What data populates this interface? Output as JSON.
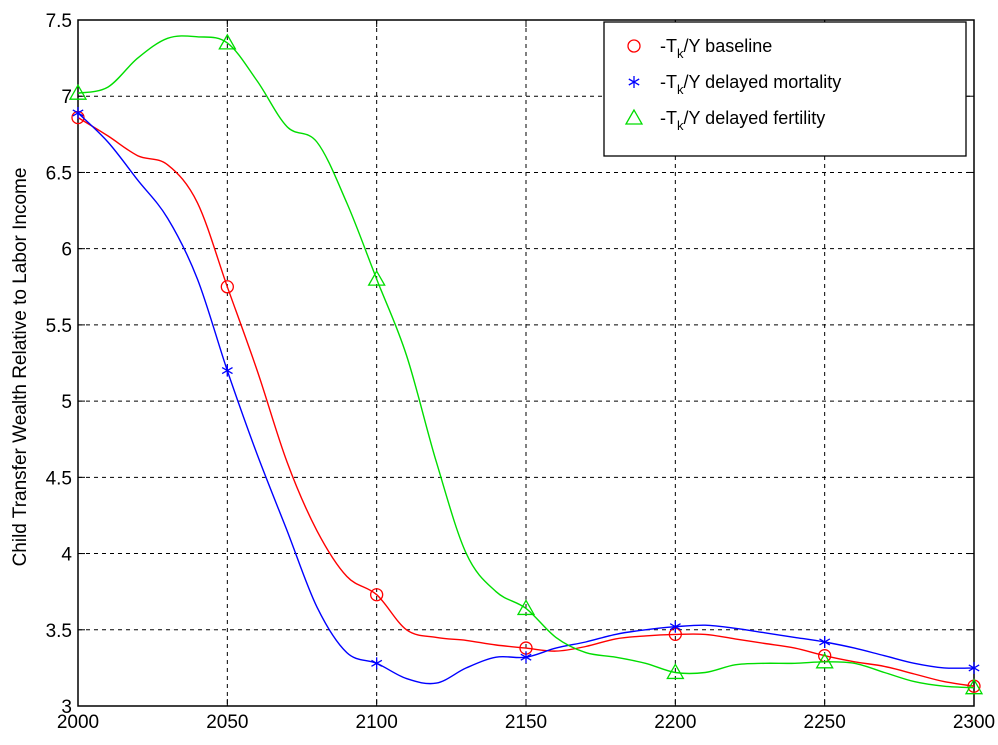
{
  "chart_data": {
    "type": "line",
    "xlabel": "",
    "ylabel": "Child Transfer Wealth Relative to Labor Income",
    "xlim": [
      2000,
      2300
    ],
    "ylim": [
      3,
      7.5
    ],
    "xticks": [
      2000,
      2050,
      2100,
      2150,
      2200,
      2250,
      2300
    ],
    "yticks": [
      3,
      3.5,
      4,
      4.5,
      5,
      5.5,
      6,
      6.5,
      7,
      7.5
    ],
    "xtick_labels": [
      "2000",
      "2050",
      "2100",
      "2150",
      "2200",
      "2250",
      "2300"
    ],
    "ytick_labels": [
      "3",
      "3.5",
      "4",
      "4.5",
      "5",
      "5.5",
      "6",
      "6.5",
      "7",
      "7.5"
    ],
    "grid": true,
    "legend_position": "top-right",
    "series": [
      {
        "name": "-T_k/Y baseline",
        "label_main": "-T",
        "label_sub": "k",
        "label_rest": "/Y baseline",
        "color": "#ff0000",
        "marker": "circle",
        "curve_x": [
          2000,
          2010,
          2020,
          2030,
          2040,
          2050,
          2060,
          2070,
          2080,
          2090,
          2100,
          2110,
          2120,
          2130,
          2140,
          2150,
          2160,
          2170,
          2180,
          2190,
          2200,
          2210,
          2220,
          2230,
          2240,
          2250,
          2260,
          2270,
          2280,
          2290,
          2300
        ],
        "curve_y": [
          6.86,
          6.74,
          6.61,
          6.55,
          6.3,
          5.75,
          5.2,
          4.6,
          4.15,
          3.85,
          3.73,
          3.5,
          3.45,
          3.43,
          3.4,
          3.38,
          3.36,
          3.39,
          3.44,
          3.46,
          3.47,
          3.47,
          3.44,
          3.41,
          3.38,
          3.33,
          3.29,
          3.26,
          3.21,
          3.16,
          3.13
        ],
        "marker_x": [
          2000,
          2050,
          2100,
          2150,
          2200,
          2250,
          2300
        ],
        "marker_y": [
          6.86,
          5.75,
          3.73,
          3.38,
          3.47,
          3.33,
          3.13
        ]
      },
      {
        "name": "-T_k/Y delayed mortality",
        "label_main": "-T",
        "label_sub": "k",
        "label_rest": "/Y delayed mortality",
        "color": "#0000ff",
        "marker": "asterisk",
        "curve_x": [
          2000,
          2010,
          2020,
          2030,
          2040,
          2050,
          2060,
          2070,
          2080,
          2090,
          2100,
          2110,
          2120,
          2130,
          2140,
          2150,
          2160,
          2170,
          2180,
          2190,
          2200,
          2210,
          2220,
          2230,
          2240,
          2250,
          2260,
          2270,
          2280,
          2290,
          2300
        ],
        "curve_y": [
          6.89,
          6.7,
          6.45,
          6.2,
          5.8,
          5.2,
          4.65,
          4.15,
          3.65,
          3.35,
          3.28,
          3.18,
          3.15,
          3.25,
          3.32,
          3.32,
          3.38,
          3.42,
          3.47,
          3.5,
          3.52,
          3.53,
          3.51,
          3.48,
          3.45,
          3.42,
          3.38,
          3.33,
          3.28,
          3.25,
          3.25
        ],
        "marker_x": [
          2000,
          2050,
          2100,
          2150,
          2200,
          2250,
          2300
        ],
        "marker_y": [
          6.89,
          5.2,
          3.28,
          3.32,
          3.52,
          3.42,
          3.25
        ]
      },
      {
        "name": "-T_k/Y delayed fertility",
        "label_main": "-T",
        "label_sub": "k",
        "label_rest": "/Y delayed fertility",
        "color": "#00dd00",
        "marker": "triangle",
        "curve_x": [
          2000,
          2010,
          2020,
          2030,
          2040,
          2050,
          2060,
          2070,
          2080,
          2090,
          2100,
          2110,
          2120,
          2130,
          2140,
          2150,
          2160,
          2170,
          2180,
          2190,
          2200,
          2210,
          2220,
          2230,
          2240,
          2250,
          2260,
          2270,
          2280,
          2290,
          2300
        ],
        "curve_y": [
          7.02,
          7.06,
          7.25,
          7.38,
          7.39,
          7.35,
          7.1,
          6.8,
          6.7,
          6.3,
          5.8,
          5.3,
          4.6,
          4.0,
          3.75,
          3.64,
          3.45,
          3.35,
          3.32,
          3.28,
          3.22,
          3.22,
          3.27,
          3.28,
          3.28,
          3.29,
          3.28,
          3.22,
          3.16,
          3.13,
          3.12
        ],
        "marker_x": [
          2000,
          2050,
          2100,
          2150,
          2200,
          2250,
          2300
        ],
        "marker_y": [
          7.02,
          7.35,
          5.8,
          3.64,
          3.22,
          3.29,
          3.12
        ]
      }
    ]
  }
}
